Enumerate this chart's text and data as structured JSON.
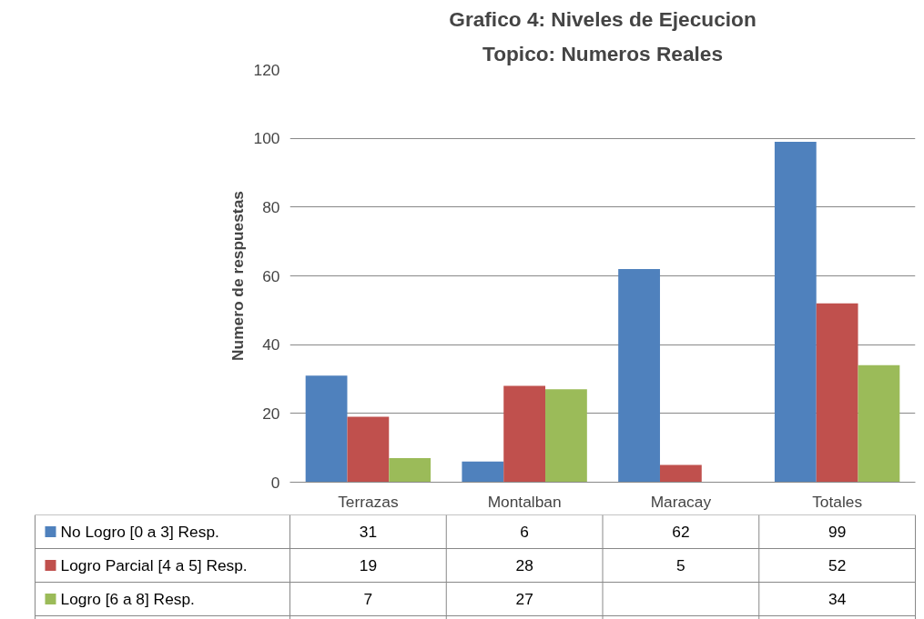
{
  "chart_data": {
    "type": "bar",
    "title": "Grafico 4: Niveles de Ejecucion",
    "subtitle": "Topico: Numeros Reales",
    "ylabel": "Numero de respuestas",
    "categories": [
      "Terrazas",
      "Montalban",
      "Maracay",
      "Totales"
    ],
    "series": [
      {
        "name": "No Logro [0 a 3] Resp.",
        "color": "#4f81bd",
        "values": [
          31,
          6,
          62,
          99
        ]
      },
      {
        "name": "Logro Parcial [4 a 5] Resp.",
        "color": "#c0504d",
        "values": [
          19,
          28,
          5,
          52
        ]
      },
      {
        "name": "Logro [6 a 8] Resp.",
        "color": "#9bbb59",
        "values": [
          7,
          27,
          null,
          34
        ]
      }
    ],
    "ylim": [
      0,
      120
    ],
    "yticks": [
      0,
      20,
      40,
      60,
      80,
      100,
      120
    ],
    "grid": "y",
    "legend": "bottom",
    "data_labels": true
  }
}
